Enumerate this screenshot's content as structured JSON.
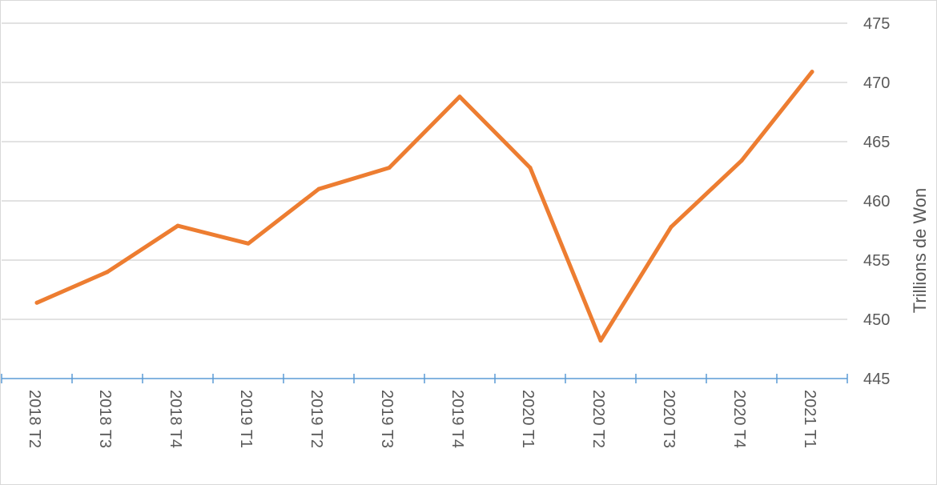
{
  "chart_data": {
    "type": "line",
    "categories": [
      "2018 T2",
      "2018 T3",
      "2018 T4",
      "2019 T1",
      "2019 T2",
      "2019 T3",
      "2019 T4",
      "2020 T1",
      "2020 T2",
      "2020 T3",
      "2020 T4",
      "2021 T1"
    ],
    "series": [
      {
        "values": [
          451.4,
          454.0,
          457.9,
          456.4,
          461.0,
          462.8,
          468.8,
          462.8,
          448.2,
          457.8,
          463.4,
          470.9
        ],
        "color": "#ED7D31"
      }
    ],
    "y_ticks": [
      "445",
      "450",
      "455",
      "460",
      "465",
      "470",
      "475"
    ],
    "ylim": [
      445,
      475
    ],
    "ylabel": "Trillions de Won",
    "xlabel": "",
    "title": "",
    "grid": true,
    "y_axis_side": "right",
    "x_axis_color": "#5B9BD5",
    "grid_color": "#d9d9d9",
    "legend": "none"
  }
}
